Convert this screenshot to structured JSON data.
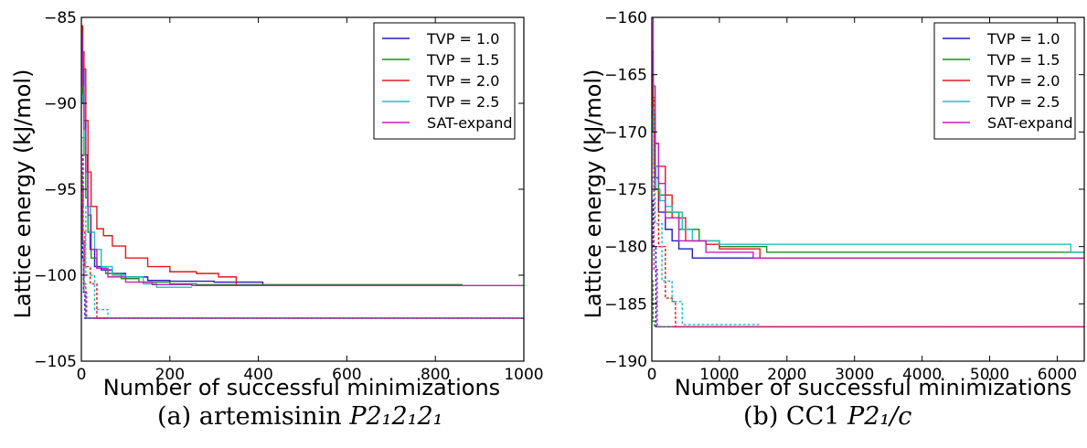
{
  "chart_data": [
    {
      "type": "line",
      "caption": {
        "label": "(a) artemisinin",
        "formula": "P2₁2₁2₁"
      },
      "xlabel": "Number of successful minimizations",
      "ylabel": "Lattice energy (kJ/mol)",
      "xlim": [
        0,
        1000
      ],
      "ylim": [
        -105,
        -85
      ],
      "xticks": [
        0,
        200,
        400,
        600,
        800,
        1000
      ],
      "yticks": [
        -85,
        -90,
        -95,
        -100,
        -105
      ],
      "legend_position": "top-right",
      "series": [
        {
          "name": "TVP = 1.0",
          "color": "#1f1fbf",
          "style": "solid",
          "x": [
            0,
            3,
            6,
            10,
            14,
            20,
            30,
            45,
            70,
            100,
            150,
            200,
            300,
            410,
            410
          ],
          "y": [
            -85.5,
            -88,
            -91,
            -93,
            -96,
            -98.5,
            -99.5,
            -99.7,
            -99.9,
            -100.1,
            -100.3,
            -100.35,
            -100.4,
            -100.4,
            -100.6
          ]
        },
        {
          "name": "TVP = 1.5",
          "color": "#1f8f1f",
          "style": "solid",
          "x": [
            0,
            3,
            6,
            10,
            15,
            22,
            35,
            55,
            90,
            130,
            200,
            260,
            860,
            860
          ],
          "y": [
            -88,
            -90,
            -93,
            -95.5,
            -97.5,
            -99,
            -99.6,
            -99.9,
            -100.2,
            -100.4,
            -100.5,
            -100.55,
            -100.55,
            -100.6
          ]
        },
        {
          "name": "TVP = 2.0",
          "color": "#e01a1a",
          "style": "solid",
          "x": [
            0,
            3,
            6,
            10,
            15,
            22,
            35,
            50,
            70,
            100,
            150,
            200,
            260,
            310,
            350,
            350
          ],
          "y": [
            -85.5,
            -87,
            -88,
            -91,
            -94,
            -96,
            -97.3,
            -97.7,
            -98.3,
            -99,
            -99.5,
            -99.8,
            -99.9,
            -100.1,
            -100.2,
            -100.6
          ]
        },
        {
          "name": "TVP = 2.5",
          "color": "#1fbfbf",
          "style": "solid",
          "x": [
            0,
            3,
            6,
            10,
            14,
            20,
            30,
            45,
            70,
            100,
            140,
            170,
            250
          ],
          "y": [
            -90,
            -89.5,
            -92,
            -94,
            -96,
            -97.5,
            -98.5,
            -99.5,
            -100,
            -100.1,
            -100.5,
            -100.7,
            -100.7
          ]
        },
        {
          "name": "SAT-expand",
          "color": "#c020c0",
          "style": "solid",
          "x": [
            0,
            3,
            6,
            10,
            15,
            22,
            35,
            60,
            100,
            160,
            250,
            1000
          ],
          "y": [
            -86,
            -89,
            -91.5,
            -94,
            -96.5,
            -98.5,
            -99.6,
            -100.1,
            -100.4,
            -100.55,
            -100.6,
            -100.6
          ]
        },
        {
          "color": "#1f1fbf",
          "style": "dotted",
          "x": [
            0,
            3,
            5,
            8,
            1000
          ],
          "y": [
            -96,
            -99,
            -101,
            -102.5,
            -102.5
          ]
        },
        {
          "color": "#1f8f1f",
          "style": "dotted",
          "x": [
            0,
            3,
            6,
            10,
            1000
          ],
          "y": [
            -94,
            -98,
            -100.5,
            -102.5,
            -102.5
          ]
        },
        {
          "color": "#e01a1a",
          "style": "dotted",
          "x": [
            0,
            4,
            8,
            20,
            35,
            35,
            1000
          ],
          "y": [
            -95,
            -97.5,
            -99.5,
            -100.5,
            -102,
            -102.5,
            -102.5
          ]
        },
        {
          "color": "#1fbfbf",
          "style": "dotted",
          "x": [
            0,
            5,
            10,
            30,
            60,
            60,
            1000
          ],
          "y": [
            -92,
            -96,
            -100,
            -102,
            -102,
            -102.5,
            -102.5
          ]
        },
        {
          "color": "#c020c0",
          "style": "dotted",
          "x": [
            0,
            3,
            6,
            12,
            1000
          ],
          "y": [
            -93,
            -98,
            -101,
            -102.5,
            -102.5
          ]
        }
      ]
    },
    {
      "type": "line",
      "caption": {
        "label": "(b) CC1",
        "formula": "P2₁/c"
      },
      "xlabel": "Number of successful minimizations",
      "ylabel": "Lattice energy (kJ/mol)",
      "xlim": [
        0,
        6400
      ],
      "ylim": [
        -190,
        -160
      ],
      "xticks": [
        0,
        1000,
        2000,
        3000,
        4000,
        5000,
        6000
      ],
      "yticks": [
        -160,
        -165,
        -170,
        -175,
        -180,
        -185,
        -190
      ],
      "legend_position": "top-right",
      "series": [
        {
          "name": "TVP = 1.0",
          "color": "#1f1fbf",
          "style": "solid",
          "x": [
            0,
            20,
            50,
            100,
            200,
            300,
            400,
            600,
            600,
            6400
          ],
          "y": [
            -163,
            -170,
            -174,
            -177,
            -178.5,
            -179.5,
            -180.2,
            -180.3,
            -181,
            -181
          ]
        },
        {
          "name": "TVP = 1.5",
          "color": "#1f8f1f",
          "style": "solid",
          "x": [
            0,
            20,
            50,
            100,
            200,
            400,
            700,
            1000,
            1700,
            6400
          ],
          "y": [
            -165,
            -170,
            -173,
            -175.5,
            -177,
            -178.5,
            -179.5,
            -180,
            -180.5,
            -180.5
          ]
        },
        {
          "name": "TVP = 2.0",
          "color": "#e01a1a",
          "style": "solid",
          "x": [
            0,
            20,
            50,
            100,
            200,
            300,
            500,
            800,
            1000,
            1600,
            1600,
            6400
          ],
          "y": [
            -165,
            -168.5,
            -171,
            -173,
            -175.5,
            -177.5,
            -179.5,
            -179.8,
            -180.2,
            -180.2,
            -181,
            -181
          ]
        },
        {
          "name": "TVP = 2.5",
          "color": "#1fbfbf",
          "style": "solid",
          "x": [
            0,
            30,
            60,
            120,
            200,
            300,
            450,
            600,
            1000,
            6200,
            6200,
            6400
          ],
          "y": [
            -168,
            -173,
            -175,
            -176,
            -176.5,
            -177,
            -178.5,
            -179.5,
            -179.8,
            -179.8,
            -180.5,
            -180.5
          ]
        },
        {
          "name": "SAT-expand",
          "color": "#c020c0",
          "style": "solid",
          "x": [
            0,
            20,
            50,
            100,
            200,
            400,
            800,
            1500,
            6400
          ],
          "y": [
            -160,
            -166,
            -171,
            -174.5,
            -177.5,
            -179.5,
            -180.5,
            -181,
            -181
          ]
        },
        {
          "color": "#1f1fbf",
          "style": "dotted",
          "x": [
            0,
            20,
            60,
            60,
            6400
          ],
          "y": [
            -176,
            -180,
            -183,
            -187,
            -187
          ]
        },
        {
          "color": "#1f8f1f",
          "style": "dotted",
          "x": [
            0,
            20,
            40,
            6400
          ],
          "y": [
            -183,
            -186.5,
            -187,
            -187
          ]
        },
        {
          "color": "#e01a1a",
          "style": "dotted",
          "x": [
            0,
            40,
            100,
            200,
            300,
            350,
            350,
            6400
          ],
          "y": [
            -167,
            -175,
            -180,
            -184.5,
            -184.8,
            -185,
            -187,
            -187
          ]
        },
        {
          "color": "#1fbfbf",
          "style": "dotted",
          "x": [
            0,
            50,
            150,
            300,
            450,
            450,
            1600
          ],
          "y": [
            -174,
            -178,
            -183,
            -184.8,
            -185,
            -186.8,
            -186.8
          ]
        },
        {
          "color": "#c020c0",
          "style": "dotted",
          "x": [
            0,
            30,
            80,
            6400
          ],
          "y": [
            -170,
            -182,
            -187,
            -187
          ]
        }
      ]
    }
  ]
}
